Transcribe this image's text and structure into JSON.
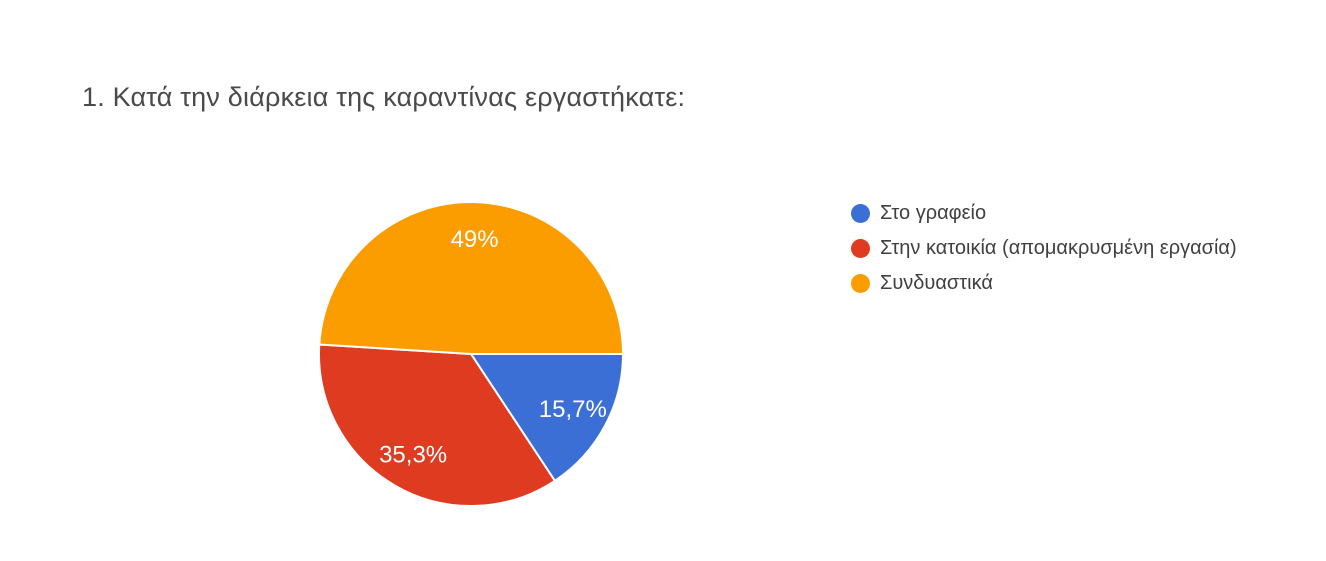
{
  "question": {
    "title": "1. Κατά την διάρκεια της καραντίνας εργαστήκατε:"
  },
  "chart_data": {
    "type": "pie",
    "title": "1. Κατά την διάρκεια της καραντίνας εργαστήκατε:",
    "slices": [
      {
        "label": "Στο γραφείο",
        "value": 15.7,
        "display": "15,7%",
        "color": "#3c6fd6"
      },
      {
        "label": "Στην κατοικία (απομακρυσμένη εργασία)",
        "value": 35.3,
        "display": "35,3%",
        "color": "#de3b20"
      },
      {
        "label": "Συνδυαστικά",
        "value": 49,
        "display": "49%",
        "color": "#fb9d00"
      }
    ],
    "start_angle_deg": 0,
    "direction": "clockwise",
    "legend_position": "right",
    "slice_label_color": "#ffffff",
    "slice_border_color": "#ffffff",
    "label_radius_fraction": 0.76
  }
}
